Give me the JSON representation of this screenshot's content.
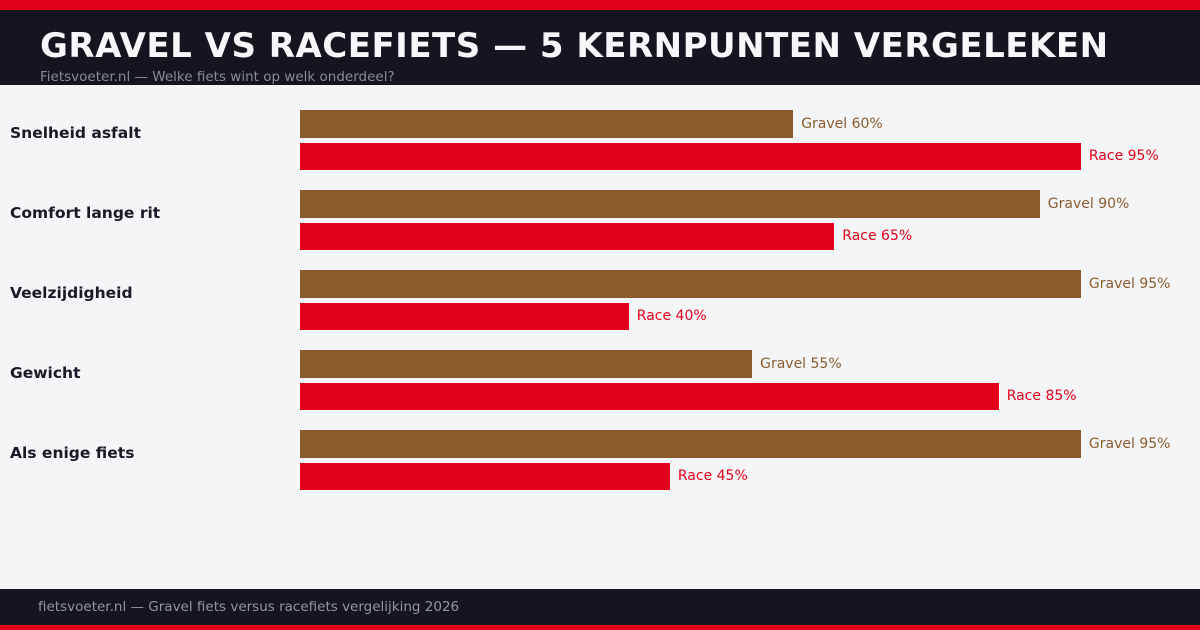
{
  "header": {
    "title": "GRAVEL VS RACEFIETS — 5 KERNPUNTEN VERGELEKEN",
    "subtitle": "Fietsvoeter.nl — Welke fiets wint op welk onderdeel?"
  },
  "footer": {
    "text": "fietsvoeter.nl — Gravel fiets versus racefiets vergelijking 2026"
  },
  "colors": {
    "accent_red": "#e2001b",
    "gravel_brown": "#8b5a2b",
    "gravel_label_text": "#8a5c2e",
    "race_red": "#e2001a",
    "header_footer_bg": "#15151f",
    "body_bg": "#f4f5f7",
    "title_text": "#f7f7f9",
    "subtitle_text": "#878b94",
    "category_text": "#191927",
    "footer_text": "#9296a1"
  },
  "rows": [
    {
      "category": "Snelheid asfalt",
      "gravel_pct": 60,
      "gravel_label": "Gravel 60%",
      "race_pct": 95,
      "race_label": "Race 95%"
    },
    {
      "category": "Comfort lange rit",
      "gravel_pct": 90,
      "gravel_label": "Gravel 90%",
      "race_pct": 65,
      "race_label": "Race 65%"
    },
    {
      "category": "Veelzijdigheid",
      "gravel_pct": 95,
      "gravel_label": "Gravel 95%",
      "race_pct": 40,
      "race_label": "Race 40%"
    },
    {
      "category": "Gewicht",
      "gravel_pct": 55,
      "gravel_label": "Gravel 55%",
      "race_pct": 85,
      "race_label": "Race 85%"
    },
    {
      "category": "Als enige fiets",
      "gravel_pct": 95,
      "gravel_label": "Gravel 95%",
      "race_pct": 45,
      "race_label": "Race 45%"
    }
  ],
  "chart_data": {
    "type": "bar",
    "orientation": "horizontal",
    "title": "GRAVEL VS RACEFIETS — 5 KERNPUNTEN VERGELEKEN",
    "subtitle": "Fietsvoeter.nl — Welke fiets wint op welk onderdeel?",
    "categories": [
      "Snelheid asfalt",
      "Comfort lange rit",
      "Veelzijdigheid",
      "Gewicht",
      "Als enige fiets"
    ],
    "series": [
      {
        "name": "Gravel",
        "color": "#8b5a2b",
        "values": [
          60,
          90,
          95,
          55,
          95
        ]
      },
      {
        "name": "Race",
        "color": "#e2001a",
        "values": [
          95,
          65,
          40,
          85,
          45
        ]
      }
    ],
    "xlim": [
      0,
      100
    ],
    "value_suffix": "%",
    "grid": false,
    "legend_position": "inline-value-labels",
    "axis_labels_visible": false
  },
  "layout_numbers": {
    "rows_start_y": 110,
    "row_spacing": 80
  }
}
